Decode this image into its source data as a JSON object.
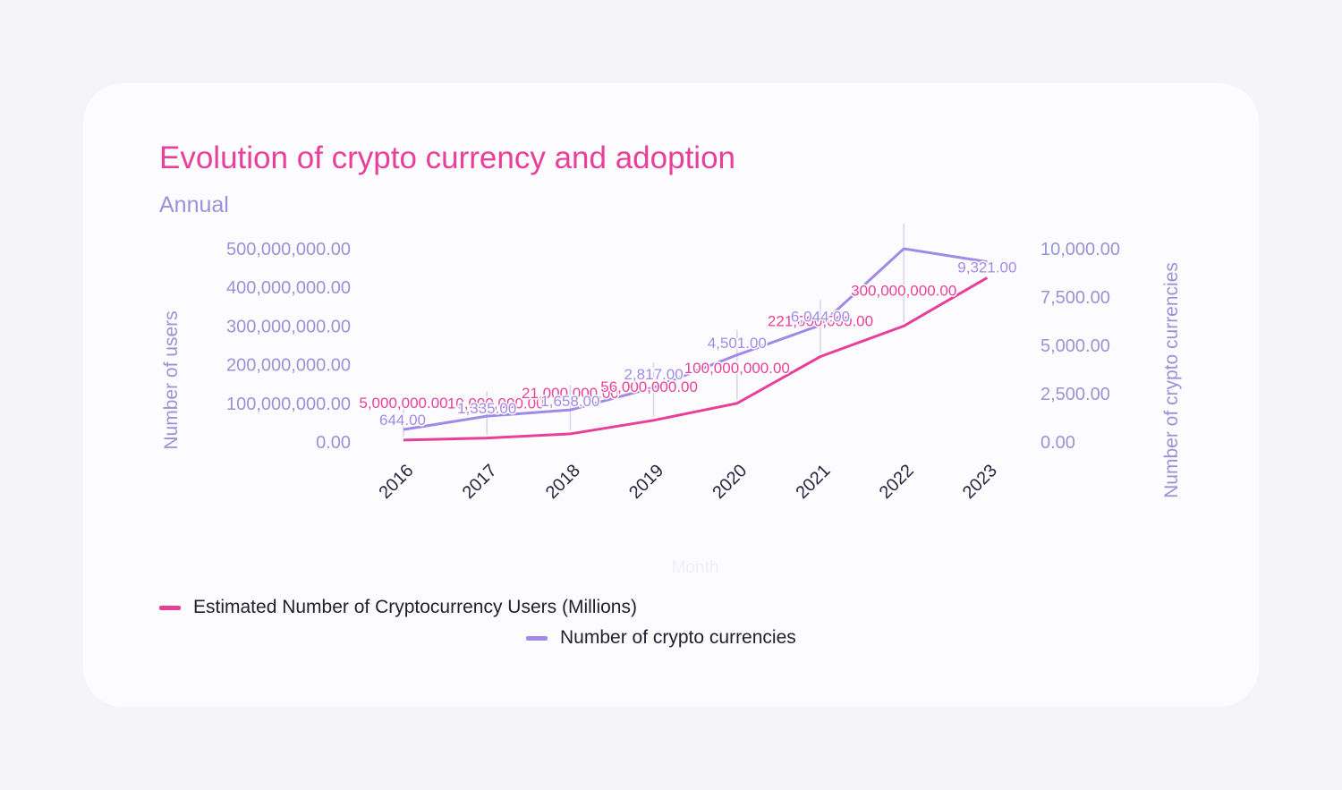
{
  "card": {
    "title": "Evolution of crypto currency and adoption",
    "subtitle": "Annual"
  },
  "colors": {
    "users": "#e8409a",
    "currencies": "#a08ae8",
    "axis_text": "#9a92d6",
    "tick_text": "#2b2440"
  },
  "chart_data": {
    "type": "line",
    "title": "Evolution of crypto currency and adoption",
    "subtitle": "Annual",
    "xlabel": "Month",
    "ylabel_left": "Number of users",
    "ylabel_right": "Number of crypto currencies",
    "categories": [
      "2016",
      "2017",
      "2018",
      "2019",
      "2020",
      "2021",
      "2022",
      "2023"
    ],
    "y_left_ticks": [
      "0.00",
      "100,000,000.00",
      "200,000,000.00",
      "300,000,000.00",
      "400,000,000.00",
      "500,000,000.00"
    ],
    "y_right_ticks": [
      "0.00",
      "2,500.00",
      "5,000.00",
      "7,500.00",
      "10,000.00"
    ],
    "ylim_left": [
      0,
      500000000
    ],
    "ylim_right": [
      0,
      10000
    ],
    "series": [
      {
        "name": "Estimated Number of Cryptocurrency Users (Millions)",
        "axis": "left",
        "values": [
          5000000,
          10000000,
          21000000,
          56000000,
          100000000,
          221000000,
          300000000,
          425000000
        ],
        "labels": [
          "5,000,000.00",
          "10,000,000.00",
          "21,000,000.00",
          "56,000,000.00",
          "100,000,000.00",
          "221,000,000.00",
          "300,000,000.00",
          ""
        ]
      },
      {
        "name": "Number of crypto currencies",
        "axis": "right",
        "values": [
          644,
          1335,
          1658,
          2817,
          4501,
          6044,
          10000,
          9321
        ],
        "labels": [
          "644.00",
          "1,335.00",
          "1,658.00",
          "2,817.00",
          "4,501.00",
          "6,044.00",
          "",
          "9,321.00"
        ]
      }
    ],
    "legend": "bottom-left",
    "grid": false
  }
}
